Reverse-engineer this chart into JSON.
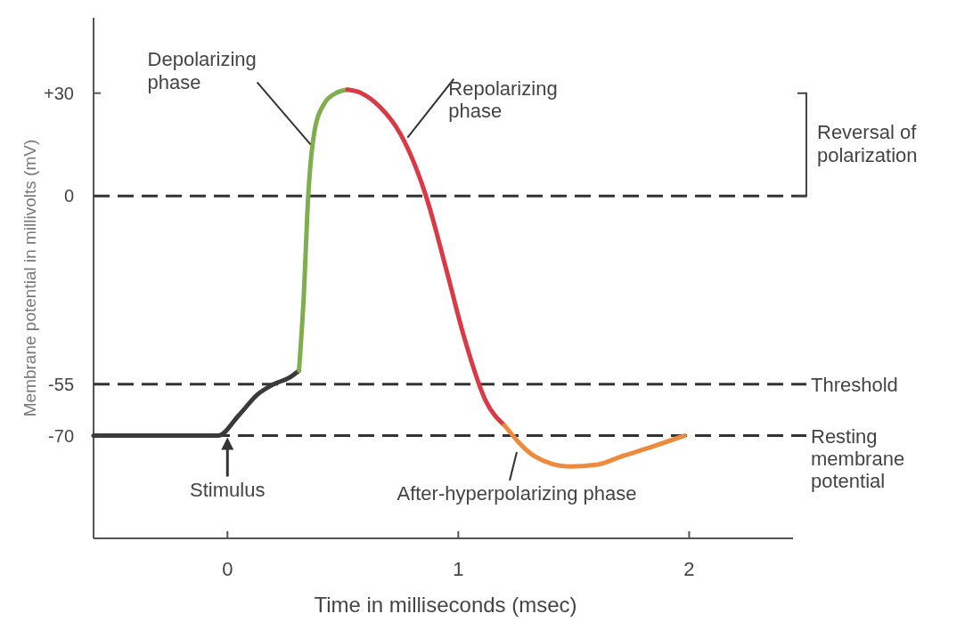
{
  "chart_data": {
    "type": "line",
    "xlabel": "Time in milliseconds (msec)",
    "ylabel": "Membrane potential in millivolts (mV)",
    "xlim": [
      -0.58,
      2.45
    ],
    "ylim": [
      -100,
      52
    ],
    "xticks": [
      0,
      1,
      2
    ],
    "yticks": [
      {
        "value": 30,
        "label": "+30"
      },
      0,
      -55,
      -70
    ],
    "grid": false,
    "line_style": "solid",
    "marker": "none",
    "series": [
      {
        "color": "#3a3a3a",
        "x": [
          -0.58,
          -0.3,
          -0.04,
          0.05,
          0.13,
          0.2,
          0.27,
          0.31
        ],
        "values": [
          -70,
          -70,
          -70,
          -64,
          -58,
          -55,
          -53,
          -51
        ]
      },
      {
        "color": "#7fae4e",
        "x": [
          0.31,
          0.33,
          0.35,
          0.38,
          0.42,
          0.47,
          0.52
        ],
        "values": [
          -51,
          -30,
          0,
          20,
          27,
          30,
          31
        ]
      },
      {
        "color": "#d93a45",
        "x": [
          0.52,
          0.58,
          0.66,
          0.75,
          0.86,
          0.95,
          1.02,
          1.12,
          1.2
        ],
        "values": [
          31,
          30,
          26,
          18,
          0,
          -22,
          -40,
          -60,
          -67
        ]
      },
      {
        "color": "#ee8a3c",
        "x": [
          1.2,
          1.33,
          1.48,
          1.6,
          1.71,
          1.85,
          1.98
        ],
        "values": [
          -67,
          -76,
          -79,
          -78.5,
          -76,
          -73,
          -70
        ]
      }
    ],
    "ref_lines": [
      {
        "axis": "y",
        "value": 0,
        "color": "#333333",
        "line_style": "dashed"
      },
      {
        "axis": "y",
        "value": -55,
        "label": "Threshold",
        "color": "#333333",
        "line_style": "dashed"
      },
      {
        "axis": "y",
        "value": -70,
        "label": "Resting\nmembrane\npotential",
        "color": "#333333",
        "line_style": "dashed"
      }
    ],
    "annotations": [
      {
        "text": "Depolarizing\nphase",
        "x": 0.36,
        "y": 15
      },
      {
        "text": "Repolarizing\nphase",
        "x": 0.78,
        "y": 17
      },
      {
        "text": "Stimulus",
        "x": 0,
        "y": -70
      },
      "After-hyperpolarizing phase",
      "Reversal of\npolarization"
    ]
  }
}
